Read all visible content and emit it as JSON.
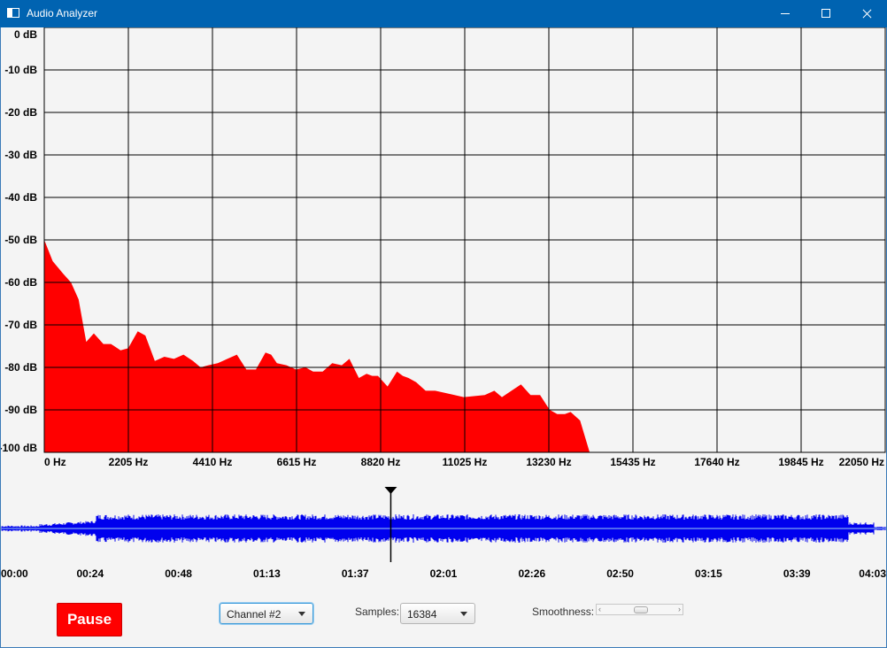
{
  "window": {
    "title": "Audio Analyzer"
  },
  "chart_data": {
    "type": "area",
    "title": "",
    "xlabel": "",
    "ylabel": "",
    "xlim": [
      0,
      22050
    ],
    "ylim": [
      -100,
      0
    ],
    "x_tick_labels": [
      "0 Hz",
      "2205 Hz",
      "4410 Hz",
      "6615 Hz",
      "8820 Hz",
      "11025 Hz",
      "13230 Hz",
      "15435 Hz",
      "17640 Hz",
      "19845 Hz",
      "22050 Hz"
    ],
    "y_tick_labels": [
      "0 dB",
      "-10 dB",
      "-20 dB",
      "-30 dB",
      "-40 dB",
      "-50 dB",
      "-60 dB",
      "-70 dB",
      "-80 dB",
      "-90 dB",
      "-100 dB"
    ],
    "grid": true,
    "series": [
      {
        "color": "#ff0000",
        "x": [
          0,
          220,
          500,
          700,
          900,
          1100,
          1300,
          1550,
          1750,
          2000,
          2200,
          2450,
          2650,
          2900,
          3150,
          3400,
          3650,
          3900,
          4100,
          4300,
          4550,
          4800,
          5050,
          5300,
          5550,
          5800,
          5950,
          6100,
          6350,
          6600,
          6850,
          7050,
          7300,
          7550,
          7800,
          8000,
          8250,
          8450,
          8600,
          8750,
          9000,
          9250,
          9400,
          9550,
          9750,
          10000,
          10250,
          10500,
          11000,
          11550,
          11800,
          12000,
          12250,
          12500,
          12750,
          13000,
          13250,
          13450,
          13650,
          13800,
          14050,
          14300,
          14550,
          14800,
          15000
        ],
        "values": [
          -50,
          -55,
          -58,
          -60,
          -64,
          -74,
          -72,
          -74.5,
          -74.5,
          -76,
          -75.5,
          -71.5,
          -72.5,
          -78.5,
          -77.5,
          -78,
          -77,
          -78.5,
          -80,
          -79.5,
          -79,
          -78,
          -77,
          -80.5,
          -80.5,
          -76.5,
          -77,
          -79,
          -79.5,
          -80.5,
          -80,
          -81,
          -81,
          -79,
          -79.5,
          -78,
          -82.5,
          -81.5,
          -82,
          -82,
          -84.5,
          -81,
          -82,
          -82.5,
          -83.5,
          -85.5,
          -85.5,
          -86,
          -87,
          -86.5,
          -85.5,
          -87,
          -85.5,
          -84,
          -86.5,
          -86.5,
          -90,
          -91,
          -91,
          -90.5,
          -92.5,
          -100,
          -100,
          -100,
          -100
        ]
      }
    ]
  },
  "waveform": {
    "time_labels": [
      "00:00",
      "00:24",
      "00:48",
      "01:13",
      "01:37",
      "02:01",
      "02:26",
      "02:50",
      "03:15",
      "03:39",
      "04:03"
    ],
    "duration_seconds": 243,
    "playhead_seconds": 107,
    "waveform_color": "#0000ee"
  },
  "controls": {
    "pause_label": "Pause",
    "channel_value": "Channel #2",
    "samples_label": "Samples:",
    "samples_value": "16384",
    "smoothness_label": "Smoothness:",
    "smoothness_fraction": 0.5
  }
}
